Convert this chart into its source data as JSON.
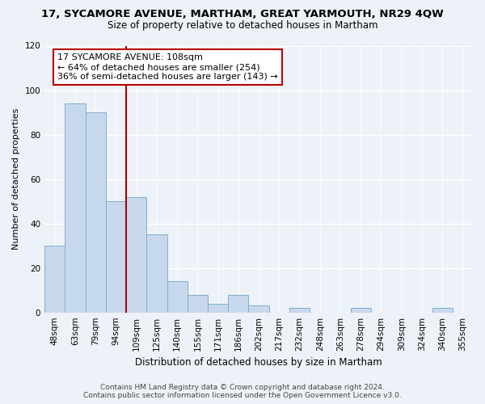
{
  "title1": "17, SYCAMORE AVENUE, MARTHAM, GREAT YARMOUTH, NR29 4QW",
  "title2": "Size of property relative to detached houses in Martham",
  "xlabel": "Distribution of detached houses by size in Martham",
  "ylabel": "Number of detached properties",
  "categories": [
    "48sqm",
    "63sqm",
    "79sqm",
    "94sqm",
    "109sqm",
    "125sqm",
    "140sqm",
    "155sqm",
    "171sqm",
    "186sqm",
    "202sqm",
    "217sqm",
    "232sqm",
    "248sqm",
    "263sqm",
    "278sqm",
    "294sqm",
    "309sqm",
    "324sqm",
    "340sqm",
    "355sqm"
  ],
  "values": [
    30,
    94,
    90,
    50,
    52,
    35,
    14,
    8,
    4,
    8,
    3,
    0,
    2,
    0,
    0,
    2,
    0,
    0,
    0,
    2,
    0
  ],
  "bar_color": "#c8d8ec",
  "bar_edge_color": "#7fafd0",
  "property_line_color": "#aa0000",
  "box_text_line1": "17 SYCAMORE AVENUE: 108sqm",
  "box_text_line2": "← 64% of detached houses are smaller (254)",
  "box_text_line3": "36% of semi-detached houses are larger (143) →",
  "box_color": "white",
  "box_edge_color": "#bb0000",
  "ylim": [
    0,
    120
  ],
  "yticks": [
    0,
    20,
    40,
    60,
    80,
    100,
    120
  ],
  "footer_line1": "Contains HM Land Registry data © Crown copyright and database right 2024.",
  "footer_line2": "Contains public sector information licensed under the Open Government Licence v3.0.",
  "background_color": "#edf2f8",
  "grid_color": "#ffffff",
  "title1_fontsize": 9.5,
  "title2_fontsize": 8.5,
  "xlabel_fontsize": 8.5,
  "ylabel_fontsize": 8.0,
  "tick_fontsize": 7.5,
  "footer_fontsize": 6.5,
  "annotation_fontsize": 8.0
}
